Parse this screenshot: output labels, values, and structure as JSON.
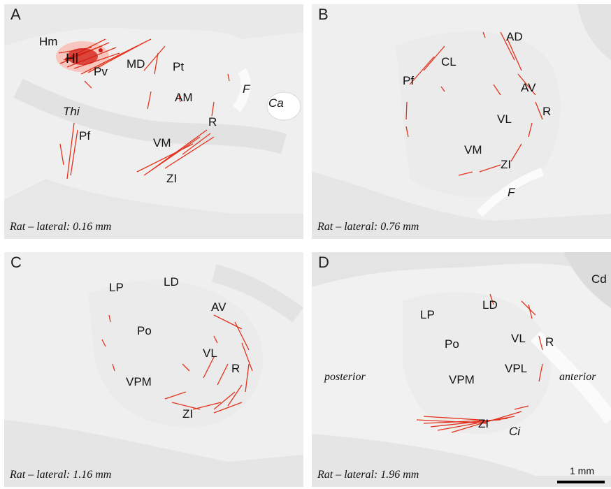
{
  "panels": {
    "A": {
      "letter": "A",
      "caption": "Rat – lateral: 0.16 mm",
      "regions": [
        "Hm",
        "Hl",
        "Pv",
        "MD",
        "Pt",
        "AM",
        "F",
        "Ca",
        "Thi",
        "Pf",
        "VM",
        "R",
        "ZI"
      ]
    },
    "B": {
      "letter": "B",
      "caption": "Rat – lateral: 0.76 mm",
      "regions": [
        "AD",
        "CL",
        "Pf",
        "AV",
        "VL",
        "R",
        "VM",
        "ZI",
        "F"
      ]
    },
    "C": {
      "letter": "C",
      "caption": "Rat – lateral: 1.16 mm",
      "regions": [
        "LP",
        "LD",
        "AV",
        "Po",
        "VL",
        "R",
        "VPM",
        "ZI"
      ]
    },
    "D": {
      "letter": "D",
      "caption": "Rat – lateral: 1.96 mm",
      "regions": [
        "Cd",
        "LD",
        "LP",
        "VL",
        "R",
        "Po",
        "VPL",
        "VPM",
        "ZI",
        "Ci"
      ],
      "posterior": "posterior",
      "anterior": "anterior"
    }
  },
  "scale": {
    "label": "1 mm"
  },
  "colors": {
    "labeling": "#e2321c",
    "tissue": "#e6e6e6",
    "background": "#f0f0f0"
  }
}
